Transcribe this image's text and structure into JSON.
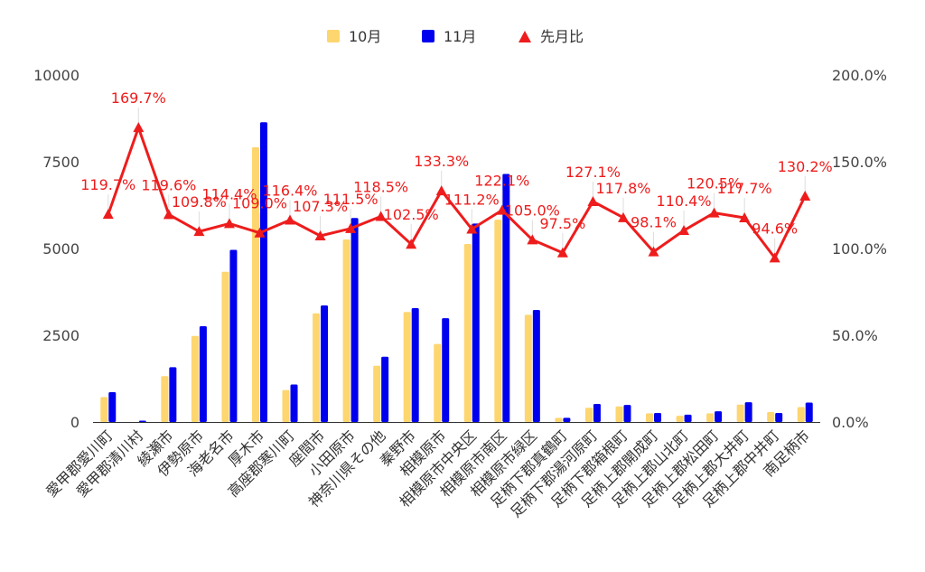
{
  "chart_data": {
    "type": "bar",
    "categories": [
      "愛甲郡愛川町",
      "愛甲郡清川村",
      "綾瀬市",
      "伊勢原市",
      "海老名市",
      "厚木市",
      "高座郡寒川町",
      "座間市",
      "小田原市",
      "神奈川県その他",
      "秦野市",
      "相模原市",
      "相模原市中央区",
      "相模原市南区",
      "相模原市緑区",
      "足柄下郡真鶴町",
      "足柄下郡湯河原町",
      "足柄下郡箱根町",
      "足柄上郡開成町",
      "足柄上郡山北町",
      "足柄上郡松田町",
      "足柄上郡大井町",
      "足柄上郡中井町",
      "南足柄市"
    ],
    "series": [
      {
        "name": "10月",
        "color": "#fdd66f",
        "axis": "left",
        "values": [
          720,
          0,
          1320,
          2480,
          4330,
          7920,
          920,
          3130,
          5260,
          1620,
          3170,
          2250,
          5130,
          5830,
          3090,
          120,
          410,
          450,
          250,
          180,
          250,
          500,
          290,
          430
        ]
      },
      {
        "name": "11月",
        "color": "#0000ee",
        "axis": "left",
        "values": [
          860,
          40,
          1580,
          2760,
          4960,
          8640,
          1080,
          3360,
          5880,
          1880,
          3280,
          2990,
          5720,
          7150,
          3230,
          120,
          520,
          490,
          260,
          210,
          310,
          570,
          260,
          560
        ]
      },
      {
        "name": "先月比",
        "color": "#ee1c1c",
        "axis": "right",
        "kind": "line",
        "values": [
          119.7,
          169.7,
          119.6,
          109.8,
          114.4,
          109.0,
          116.4,
          107.3,
          111.5,
          118.5,
          102.5,
          133.3,
          111.2,
          122.1,
          105.0,
          97.5,
          127.1,
          117.8,
          98.1,
          110.4,
          120.5,
          117.7,
          94.6,
          130.2
        ],
        "labels": [
          "119.7%",
          "169.7%",
          "119.6%",
          "109.8%",
          "114.4%",
          "109.0%",
          "116.4%",
          "107.3%",
          "111.5%",
          "118.5%",
          "102.5%",
          "133.3%",
          "111.2%",
          "122.1%",
          "105.0%",
          "97.5%",
          "127.1%",
          "117.8%",
          "98.1%",
          "110.4%",
          "120.5%",
          "117.7%",
          "94.6%",
          "130.2%"
        ]
      }
    ],
    "left_axis": {
      "ticks": [
        "0",
        "2500",
        "5000",
        "7500",
        "10000"
      ],
      "ylim": [
        0,
        10000
      ]
    },
    "right_axis": {
      "ticks": [
        "0.0%",
        "50.0%",
        "100.0%",
        "150.0%",
        "200.0%"
      ],
      "ylim": [
        0,
        200
      ]
    },
    "legend": {
      "position": "top",
      "items": [
        "10月",
        "11月",
        "先月比"
      ]
    },
    "title": "",
    "grid": false
  }
}
